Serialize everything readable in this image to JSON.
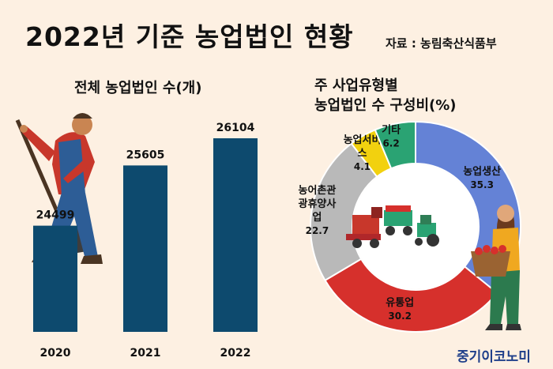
{
  "header": {
    "title": "2022년 기준 농업법인 현황",
    "source": "자료 : 농림축산식품부"
  },
  "watermark": "중기이코노미",
  "colors": {
    "background": "#fdf0e2",
    "bar": "#0d4a6e",
    "slice_farm_production": "#6482d6",
    "slice_distribution": "#d6302c",
    "slice_tourism": "#b9b9b9",
    "slice_service": "#f2d10f",
    "slice_other": "#2aa373"
  },
  "chart_data": [
    {
      "type": "bar",
      "title": "전체 농업법인 수(개)",
      "categories": [
        "2020",
        "2021",
        "2022"
      ],
      "values": [
        24499,
        25605,
        26104
      ],
      "data_labels": [
        "24499",
        "25605",
        "26104"
      ]
    },
    {
      "type": "pie",
      "title_line1": "주 사업유형별",
      "title_line2": "농업법인 수 구성비(%)",
      "slices": [
        {
          "label_lines": [
            "농업생산"
          ],
          "value": 35.3,
          "value_label": "35.3",
          "color": "#6482d6"
        },
        {
          "label_lines": [
            "유통업"
          ],
          "value": 30.2,
          "value_label": "30.2",
          "color": "#d6302c"
        },
        {
          "label_lines": [
            "농어촌관",
            "광휴양사",
            "업"
          ],
          "value": 22.7,
          "value_label": "22.7",
          "color": "#b9b9b9"
        },
        {
          "label_lines": [
            "농업서비",
            "스"
          ],
          "value": 4.1,
          "value_label": "4.1",
          "color": "#f2d10f"
        },
        {
          "label_lines": [
            "기타"
          ],
          "value": 6.2,
          "value_label": "6.2",
          "color": "#2aa373"
        }
      ]
    }
  ]
}
